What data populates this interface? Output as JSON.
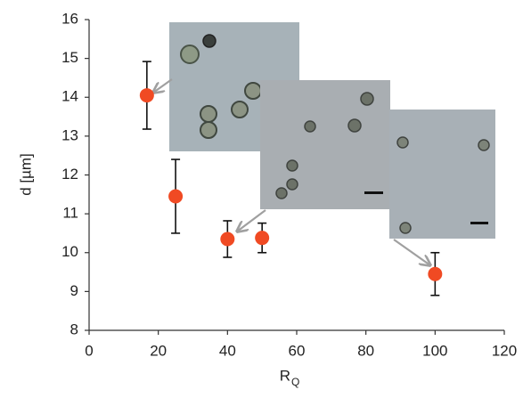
{
  "chart_data": {
    "type": "scatter",
    "x_label": "R",
    "x_label_subscript": "Q",
    "y_label": "d [µm]",
    "x": [
      16.7,
      25,
      40,
      50,
      100
    ],
    "values": [
      14.05,
      11.45,
      10.35,
      10.38,
      9.45
    ],
    "errors": [
      0.87,
      0.95,
      0.47,
      0.38,
      0.55
    ],
    "color": "#f04a23",
    "xlim": [
      0,
      120
    ],
    "xticks": [
      0,
      20,
      40,
      60,
      80,
      100,
      120
    ],
    "ylim": [
      8,
      16
    ],
    "yticks": [
      8,
      9,
      10,
      11,
      12,
      13,
      14,
      15,
      16
    ],
    "grid": false
  }
}
